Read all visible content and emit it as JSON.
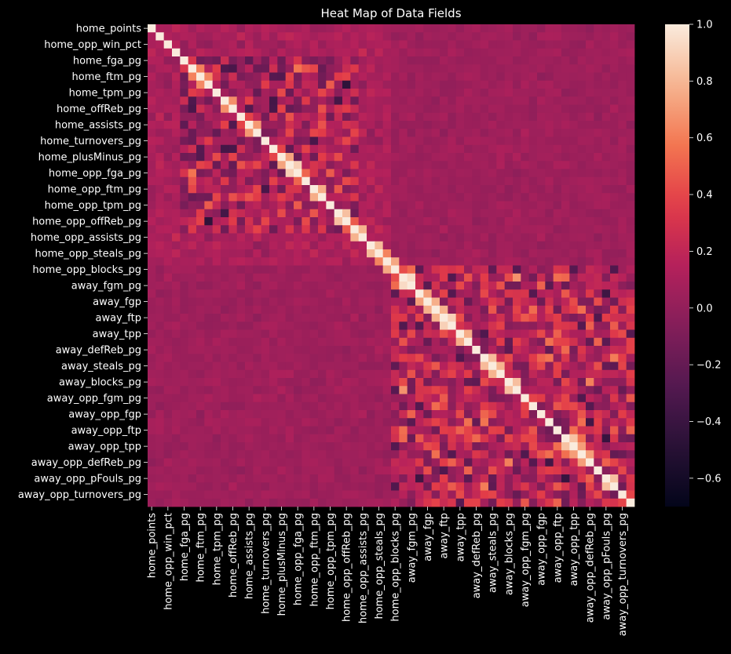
{
  "chart_data": {
    "type": "heatmap",
    "title": "Heat Map of Data Fields",
    "xlabel": "",
    "ylabel": "",
    "row_labels": [
      "home_points",
      "home_opp_win_pct",
      "home_fga_pg",
      "home_ftm_pg",
      "home_tpm_pg",
      "home_offReb_pg",
      "home_assists_pg",
      "home_turnovers_pg",
      "home_plusMinus_pg",
      "home_opp_fga_pg",
      "home_opp_ftm_pg",
      "home_opp_tpm_pg",
      "home_opp_offReb_pg",
      "home_opp_assists_pg",
      "home_opp_steals_pg",
      "home_opp_blocks_pg",
      "away_fgm_pg",
      "away_fgp",
      "away_ftp",
      "away_tpp",
      "away_defReb_pg",
      "away_steals_pg",
      "away_blocks_pg",
      "away_opp_fgm_pg",
      "away_opp_fgp",
      "away_opp_ftp",
      "away_opp_tpp",
      "away_opp_defReb_pg",
      "away_opp_pFouls_pg",
      "away_opp_turnovers_pg"
    ],
    "col_labels": [
      "home_points",
      "home_opp_win_pct",
      "home_fga_pg",
      "home_ftm_pg",
      "home_tpm_pg",
      "home_offReb_pg",
      "home_assists_pg",
      "home_turnovers_pg",
      "home_plusMinus_pg",
      "home_opp_fga_pg",
      "home_opp_ftm_pg",
      "home_opp_tpm_pg",
      "home_opp_offReb_pg",
      "home_opp_assists_pg",
      "home_opp_steals_pg",
      "home_opp_blocks_pg",
      "away_fgm_pg",
      "away_fgp",
      "away_ftp",
      "away_tpp",
      "away_defReb_pg",
      "away_steals_pg",
      "away_blocks_pg",
      "away_opp_fgm_pg",
      "away_opp_fgp",
      "away_opp_ftp",
      "away_opp_tpp",
      "away_opp_defReb_pg",
      "away_opp_pFouls_pg",
      "away_opp_turnovers_pg"
    ],
    "cells_per_label": 2,
    "matrix_size": 60,
    "home_block_size": 30,
    "value_range": [
      -0.7,
      1.0
    ],
    "diagonal_value": 1.0,
    "typical_values": {
      "cross_block": 0.05,
      "within_home_block": 0.1,
      "within_away_block": 0.15
    },
    "colorbar": {
      "ticks": [
        1.0,
        0.8,
        0.6,
        0.4,
        0.2,
        0.0,
        -0.2,
        -0.4,
        -0.6
      ],
      "tick_labels": [
        "1.0",
        "0.8",
        "0.6",
        "0.4",
        "0.2",
        "0.0",
        "−0.2",
        "−0.4",
        "−0.6"
      ],
      "colormap": "rocket"
    },
    "grid": false,
    "legend": "colorbar-right"
  }
}
